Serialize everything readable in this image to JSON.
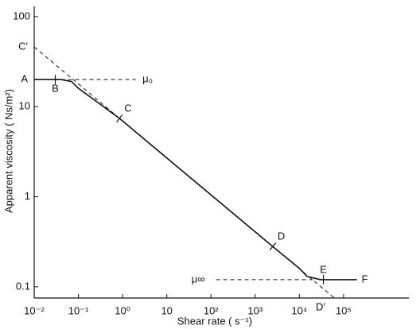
{
  "chart_data": {
    "type": "line",
    "x_label": "Shear rate ( s⁻¹)",
    "y_label": "Apparent viscosity ( Ns/m²)",
    "x_scale": "log",
    "y_scale": "log",
    "xlim": [
      0.01,
      3000000
    ],
    "ylim": [
      0.075,
      130
    ],
    "xticks": [
      {
        "value": 0.01,
        "label": "10⁻²"
      },
      {
        "value": 0.1,
        "label": "10⁻¹"
      },
      {
        "value": 1,
        "label": "10⁰"
      },
      10,
      {
        "value": 100,
        "label": "10²"
      },
      {
        "value": 1000,
        "label": "10³"
      },
      {
        "value": 10000,
        "label": "10⁴"
      },
      {
        "value": 100000,
        "label": "10⁵"
      }
    ],
    "yticks": [
      0.1,
      1,
      10,
      100
    ],
    "series": [
      {
        "color": "#111111",
        "dash": false,
        "x": [
          0.01,
          0.04,
          0.07,
          0.1,
          0.85,
          2500,
          10000,
          15000,
          30000,
          200000
        ],
        "values": [
          20,
          20,
          19,
          16,
          7.4,
          0.28,
          0.16,
          0.13,
          0.12,
          0.12
        ]
      },
      {
        "color": "#111111",
        "dash": true,
        "x": [
          0.01,
          60000
        ],
        "values": [
          46,
          0.076
        ]
      },
      {
        "color": "#111111",
        "dash": true,
        "x": [
          0.04,
          2
        ],
        "values": [
          20,
          20
        ]
      },
      {
        "color": "#111111",
        "dash": true,
        "x": [
          130,
          20000
        ],
        "values": [
          0.12,
          0.12
        ]
      }
    ],
    "markers": [
      {
        "x": 0.03,
        "y": 20
      },
      {
        "x": 0.85,
        "y": 7.4
      },
      {
        "x": 2500,
        "y": 0.28
      },
      {
        "x": 35000,
        "y": 0.12
      }
    ],
    "annotations": [
      {
        "text": "C′",
        "x": 0.01,
        "y": 46,
        "position": "left"
      },
      {
        "text": "A",
        "x": 0.01,
        "y": 20,
        "position": "left"
      },
      {
        "text": "B",
        "x": 0.03,
        "y": 20,
        "position": "below"
      },
      {
        "text": "μ₀",
        "x": 2.2,
        "y": 20,
        "position": "right"
      },
      {
        "text": "C",
        "x": 0.85,
        "y": 7.4,
        "position": "above-right"
      },
      {
        "text": "D",
        "x": 2500,
        "y": 0.28,
        "position": "above-right"
      },
      {
        "text": "E",
        "x": 35000,
        "y": 0.12,
        "position": "above"
      },
      {
        "text": "F",
        "x": 200000,
        "y": 0.12,
        "position": "right"
      },
      {
        "text": "μ∞",
        "x": 130,
        "y": 0.12,
        "position": "left"
      },
      {
        "text": "D′",
        "x": 30000,
        "y": 0.075,
        "position": "below"
      }
    ]
  }
}
